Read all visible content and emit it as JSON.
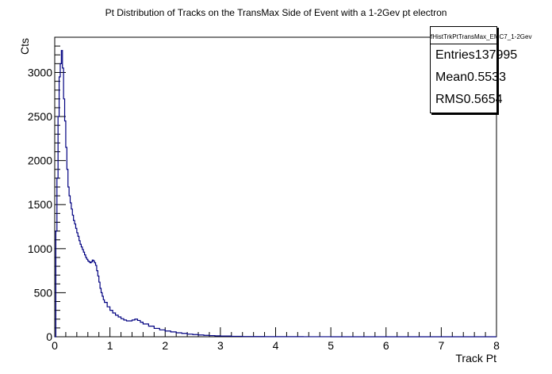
{
  "chart_data": {
    "type": "histogram",
    "title": "Pt Distribution of Tracks on the TransMax Side of Event with a 1-2Gev pt electron",
    "xlabel": "Track Pt",
    "ylabel": "Cts",
    "xlim": [
      0,
      8
    ],
    "ylim": [
      0,
      3400
    ],
    "x_ticks": [
      "0",
      "1",
      "2",
      "3",
      "4",
      "5",
      "6",
      "7",
      "8"
    ],
    "y_ticks": [
      "0",
      "500",
      "1000",
      "1500",
      "2000",
      "2500",
      "3000"
    ],
    "line_color": "#000080",
    "bin_width": 0.02,
    "points": [
      [
        0.0,
        0
      ],
      [
        0.02,
        1200
      ],
      [
        0.04,
        1800
      ],
      [
        0.06,
        2500
      ],
      [
        0.08,
        2950
      ],
      [
        0.1,
        3100
      ],
      [
        0.12,
        3250
      ],
      [
        0.14,
        3050
      ],
      [
        0.16,
        2700
      ],
      [
        0.18,
        2450
      ],
      [
        0.2,
        2150
      ],
      [
        0.22,
        1900
      ],
      [
        0.24,
        1700
      ],
      [
        0.26,
        1600
      ],
      [
        0.28,
        1520
      ],
      [
        0.3,
        1450
      ],
      [
        0.32,
        1380
      ],
      [
        0.34,
        1320
      ],
      [
        0.36,
        1280
      ],
      [
        0.38,
        1230
      ],
      [
        0.4,
        1180
      ],
      [
        0.42,
        1140
      ],
      [
        0.44,
        1090
      ],
      [
        0.46,
        1050
      ],
      [
        0.48,
        1020
      ],
      [
        0.5,
        990
      ],
      [
        0.52,
        960
      ],
      [
        0.54,
        930
      ],
      [
        0.56,
        900
      ],
      [
        0.58,
        880
      ],
      [
        0.6,
        860
      ],
      [
        0.62,
        850
      ],
      [
        0.64,
        840
      ],
      [
        0.66,
        850
      ],
      [
        0.68,
        870
      ],
      [
        0.7,
        860
      ],
      [
        0.72,
        840
      ],
      [
        0.74,
        810
      ],
      [
        0.76,
        750
      ],
      [
        0.78,
        690
      ],
      [
        0.8,
        620
      ],
      [
        0.82,
        550
      ],
      [
        0.84,
        500
      ],
      [
        0.86,
        460
      ],
      [
        0.88,
        420
      ],
      [
        0.9,
        390
      ],
      [
        0.95,
        340
      ],
      [
        1.0,
        300
      ],
      [
        1.05,
        270
      ],
      [
        1.1,
        245
      ],
      [
        1.15,
        225
      ],
      [
        1.2,
        205
      ],
      [
        1.25,
        190
      ],
      [
        1.3,
        180
      ],
      [
        1.35,
        180
      ],
      [
        1.4,
        190
      ],
      [
        1.45,
        200
      ],
      [
        1.5,
        185
      ],
      [
        1.55,
        165
      ],
      [
        1.6,
        145
      ],
      [
        1.7,
        120
      ],
      [
        1.8,
        95
      ],
      [
        1.9,
        78
      ],
      [
        2.0,
        65
      ],
      [
        2.1,
        55
      ],
      [
        2.2,
        45
      ],
      [
        2.3,
        38
      ],
      [
        2.4,
        30
      ],
      [
        2.5,
        25
      ],
      [
        2.6,
        20
      ],
      [
        2.7,
        16
      ],
      [
        2.8,
        13
      ],
      [
        2.9,
        10
      ],
      [
        3.0,
        8
      ],
      [
        3.2,
        5
      ],
      [
        3.4,
        3
      ],
      [
        3.6,
        2
      ],
      [
        3.8,
        1
      ],
      [
        4.0,
        1
      ],
      [
        4.5,
        0.5
      ],
      [
        5.0,
        0
      ],
      [
        8.0,
        0
      ]
    ]
  },
  "stats": {
    "name": "fHistTrkPtTransMax_EMC7_1-2Gev",
    "rows": [
      {
        "label": "Entries",
        "value": "137995"
      },
      {
        "label": "Mean",
        "value": "0.5533"
      },
      {
        "label": "RMS",
        "value": "0.5654"
      }
    ]
  }
}
